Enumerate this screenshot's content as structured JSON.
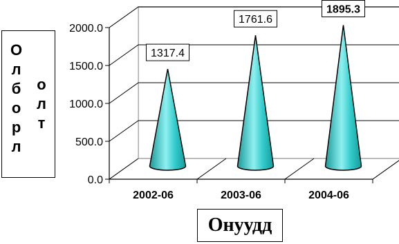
{
  "chart_data": {
    "type": "bar",
    "style": "3d-cone",
    "categories": [
      "2002-06",
      "2003-06",
      "2004-06"
    ],
    "values": [
      1317.4,
      1761.6,
      1895.3
    ],
    "data_labels": [
      "1317.4",
      "1761.6",
      "1895.3"
    ],
    "title": "",
    "xlabel": "Онуудд",
    "ylabel": "Олборл олт",
    "ylabel_col1": [
      "О",
      "л",
      "б",
      "о",
      "р",
      "л"
    ],
    "ylabel_col2": [
      "о",
      "л",
      "т"
    ],
    "ylim": [
      0,
      2000
    ],
    "yticks": [
      "0.0",
      "500.0",
      "1000.0",
      "1500.0",
      "2000.0"
    ],
    "grid": true,
    "legend": "none",
    "colors": {
      "cone": "#33cccc",
      "cone_dark": "#1a9a9a",
      "cone_light": "#8ff0f0",
      "outline": "#000000",
      "background": "#ffffff"
    }
  }
}
